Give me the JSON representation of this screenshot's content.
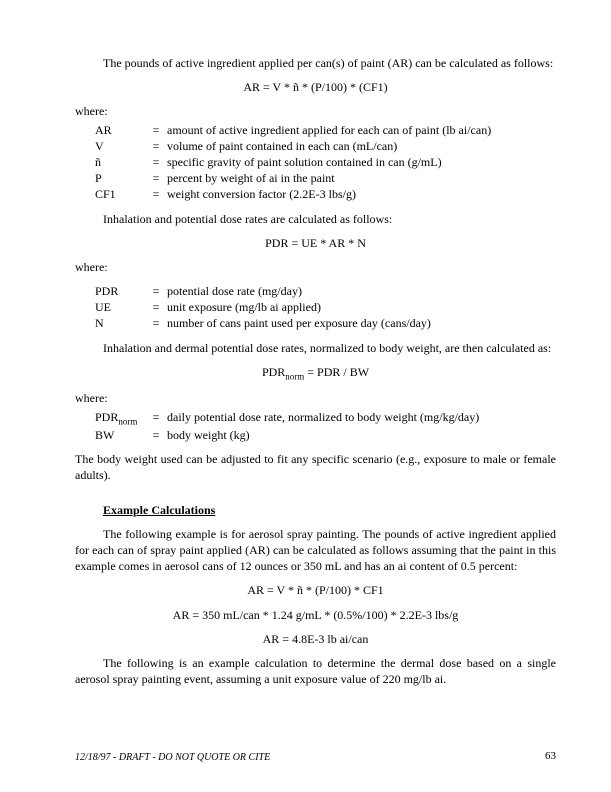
{
  "intro_ar": "The pounds of active ingredient applied per can(s) of paint (AR) can be calculated as follows:",
  "formula_ar": "AR = V * ñ * (P/100) * (CF1)",
  "where": "where:",
  "defs_ar": [
    {
      "sym": "AR",
      "desc": "amount of active ingredient applied for each can of paint (lb ai/can)"
    },
    {
      "sym": "V",
      "desc": "volume of paint contained in each can (mL/can)"
    },
    {
      "sym": "ñ",
      "desc": "specific gravity of paint solution contained in can (g/mL)"
    },
    {
      "sym": "P",
      "desc": "percent by weight of ai in the paint"
    },
    {
      "sym": "CF1",
      "desc": "weight conversion factor (2.2E-3 lbs/g)"
    }
  ],
  "intro_pdr": "Inhalation and potential dose rates are calculated as follows:",
  "formula_pdr": "PDR = UE * AR * N",
  "defs_pdr": [
    {
      "sym": "PDR",
      "desc": "potential dose rate (mg/day)"
    },
    {
      "sym": "UE",
      "desc": "unit exposure (mg/lb ai applied)"
    },
    {
      "sym": "N",
      "desc": "number of cans paint used per exposure day (cans/day)"
    }
  ],
  "intro_pdrnorm": "Inhalation and dermal potential dose rates, normalized to body weight, are then calculated as:",
  "formula_pdrnorm_pre": "PDR",
  "formula_pdrnorm_sub": "norm",
  "formula_pdrnorm_post": " = PDR / BW",
  "defs_pdrnorm": [
    {
      "sym": "PDR",
      "sub": "norm",
      "desc": "daily potential dose rate, normalized to body weight (mg/kg/day)"
    },
    {
      "sym": "BW",
      "desc": "body weight (kg)"
    }
  ],
  "bw_note": "The body weight used can be adjusted to fit any specific scenario (e.g., exposure to male or female adults).",
  "section_example": "Example Calculations",
  "example_p1": "The following example is for aerosol spray painting. The pounds of active ingredient applied for each can of spray paint applied (AR) can be calculated as follows assuming that the paint in this example comes in aerosol cans of 12 ounces or 350 mL and has an ai content of 0.5 percent:",
  "formula_ex1": "AR = V * ñ * (P/100) * CF1",
  "formula_ex2": "AR = 350 mL/can * 1.24 g/mL * (0.5%/100) * 2.2E-3 lbs/g",
  "formula_ex3": "AR = 4.8E-3 lb ai/can",
  "example_p2": "The following is an example calculation to determine the dermal dose based on a single aerosol spray painting event, assuming a unit exposure value of 220 mg/lb ai.",
  "footer_draft": "12/18/97 - DRAFT - DO NOT QUOTE OR CITE",
  "footer_page": "63",
  "eq": "="
}
